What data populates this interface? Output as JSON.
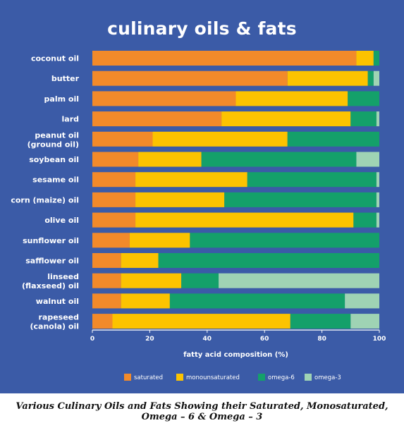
{
  "chart_data": {
    "type": "bar",
    "orientation": "horizontal",
    "stacked": true,
    "title": "culinary oils & fats",
    "xlabel": "fatty acid composition (%)",
    "ylabel": "",
    "xlim": [
      0,
      100
    ],
    "xticks": [
      "0",
      "20",
      "40",
      "60",
      "80",
      "100"
    ],
    "grid": false,
    "legend_position": "bottom",
    "categories": [
      "coconut oil",
      "butter",
      "palm oil",
      "lard",
      "peanut oil\n(ground oil)",
      "soybean oil",
      "sesame oil",
      "corn (maize) oil",
      "olive oil",
      "sunflower oil",
      "safflower oil",
      "linseed\n(flaxseed) oil",
      "walnut oil",
      "rapeseed\n(canola) oil"
    ],
    "series": [
      {
        "name": "saturated",
        "color": "#f28a2a",
        "values": [
          92,
          68,
          50,
          45,
          21,
          16,
          15,
          15,
          15,
          13,
          10,
          10,
          10,
          7
        ]
      },
      {
        "name": "monounsaturated",
        "color": "#fcc300",
        "values": [
          6,
          28,
          39,
          45,
          47,
          22,
          39,
          31,
          76,
          21,
          13,
          21,
          17,
          62
        ]
      },
      {
        "name": "omega-6",
        "color": "#14a06a",
        "values": [
          2,
          2,
          11,
          9,
          32,
          54,
          45,
          53,
          8,
          66,
          77,
          13,
          61,
          21
        ]
      },
      {
        "name": "omega-3",
        "color": "#9fd3b4",
        "values": [
          0,
          2,
          0,
          1,
          0,
          8,
          1,
          1,
          1,
          0,
          0,
          56,
          12,
          10
        ]
      }
    ]
  },
  "caption": "Various Culinary Oils and Fats Showing their Saturated, Monosaturated, Omega – 6 & Omega – 3"
}
